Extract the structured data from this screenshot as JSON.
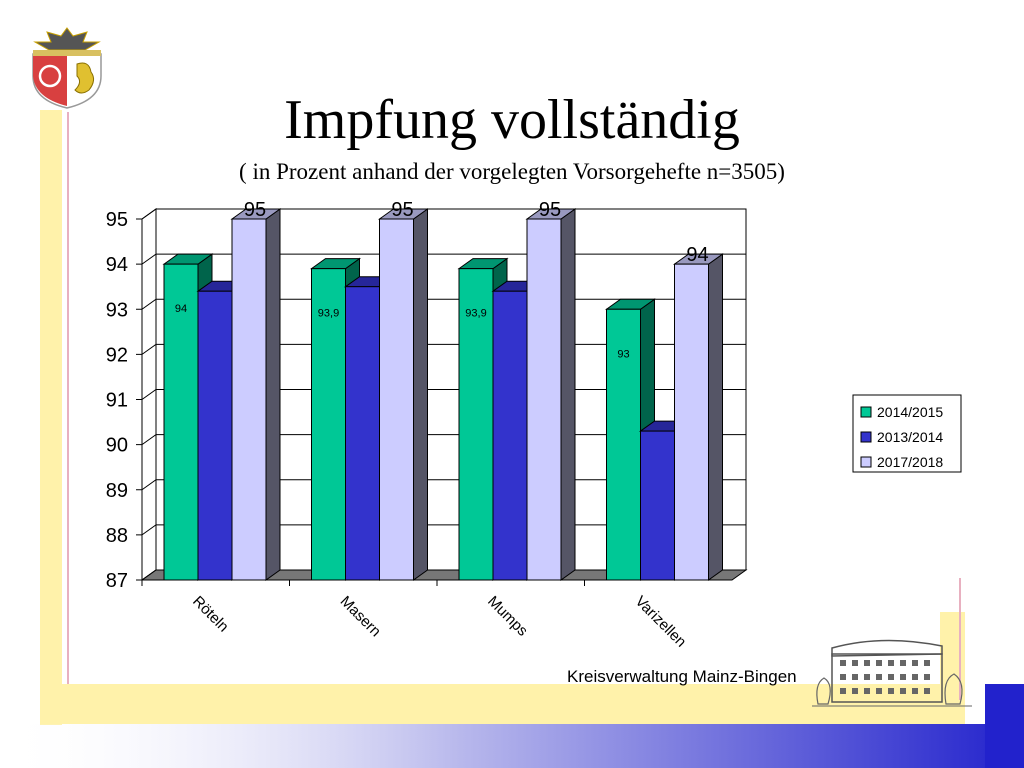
{
  "slide": {
    "title": "Impfung vollständig",
    "subtitle": "( in Prozent anhand der vorgelegten Vorsorgehefte n=3505)",
    "footer": "Kreisverwaltung Mainz-Bingen"
  },
  "chart_data": {
    "type": "bar",
    "title": "",
    "xlabel": "",
    "ylabel": "",
    "ylim": [
      87,
      95
    ],
    "yticks": [
      "87",
      "88",
      "89",
      "90",
      "91",
      "92",
      "93",
      "94",
      "95"
    ],
    "categories": [
      "Röteln",
      "Masern",
      "Mumps",
      "Varizellen"
    ],
    "series": [
      {
        "name": "2014/2015",
        "color": "#00C896",
        "values": [
          94,
          93.9,
          93.9,
          93
        ],
        "labels": [
          "94",
          "93,9",
          "93,9",
          "93"
        ]
      },
      {
        "name": "2013/2014",
        "color": "#3333CC",
        "values": [
          93.4,
          93.5,
          93.4,
          90.3
        ],
        "labels": [
          "",
          "",
          "",
          ""
        ]
      },
      {
        "name": "2017/2018",
        "color": "#CCCCFF",
        "values": [
          95,
          95,
          95,
          94
        ],
        "labels": [
          "95",
          "95",
          "95",
          "94"
        ]
      }
    ],
    "grid": true,
    "legend": "right"
  },
  "colors": {
    "frame_yellow": "#FFF2AA",
    "frame_pink": "#E8B0C0",
    "bottom_gradient_start": "#FFFFFF",
    "bottom_gradient_end": "#2222CC",
    "side_dark": "#555566"
  }
}
